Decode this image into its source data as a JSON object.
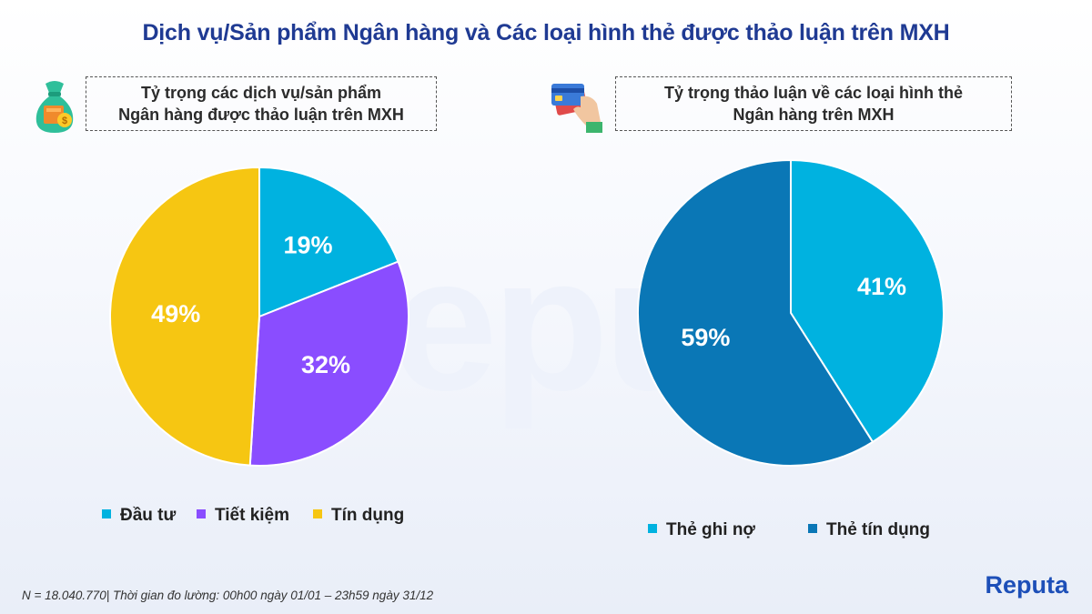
{
  "title": "Dịch vụ/Sản phẩm Ngân hàng và Các loại hình thẻ được thảo luận trên MXH",
  "watermark": "epu",
  "chart_data": [
    {
      "type": "pie",
      "title_line1": "Tỷ trọng các dịch vụ/sản phẩm",
      "title_line2": "Ngân hàng được thảo luận trên MXH",
      "categories": [
        "Đầu tư",
        "Tiết kiệm",
        "Tín dụng"
      ],
      "values": [
        19,
        32,
        49
      ],
      "labels": [
        "19%",
        "32%",
        "49%"
      ],
      "colors": [
        "#00b2e0",
        "#8a4dff",
        "#f6c612"
      ],
      "legend": "bottom"
    },
    {
      "type": "pie",
      "title_line1": "Tỷ trọng thảo luận về các loại hình thẻ",
      "title_line2": "Ngân hàng trên MXH",
      "categories": [
        "Thẻ ghi nợ",
        "Thẻ tín dụng"
      ],
      "values": [
        41,
        59
      ],
      "labels": [
        "41%",
        "59%"
      ],
      "colors": [
        "#00b2e0",
        "#0a77b6"
      ],
      "legend": "bottom"
    }
  ],
  "icons": [
    "money-bag-icon",
    "credit-card-hand-icon"
  ],
  "footnote": "N = 18.040.770| Thời gian đo lường: 00h00 ngày 01/01 – 23h59 ngày 31/12",
  "brand": "Reputa"
}
